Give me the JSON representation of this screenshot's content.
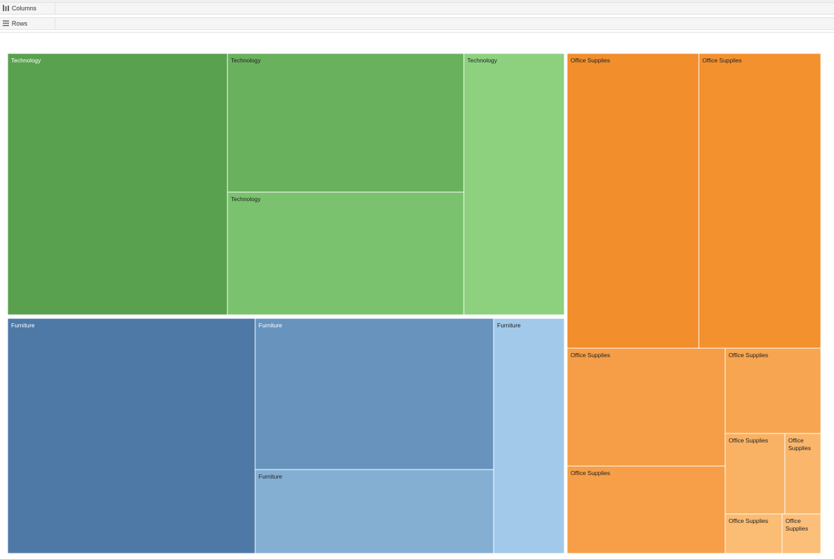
{
  "shelves": {
    "columns_label": "Columns",
    "rows_label": "Rows"
  },
  "chart_data": {
    "type": "treemap",
    "title": "",
    "groups": [
      {
        "name": "Technology",
        "tiles": [
          {
            "label": "Technology",
            "color": "#59a14f",
            "text_color": "#ffffff"
          },
          {
            "label": "Technology",
            "color": "#6ab15e",
            "text_color": "#222222"
          },
          {
            "label": "Technology",
            "color": "#7bc26e",
            "text_color": "#222222"
          },
          {
            "label": "Technology",
            "color": "#8dd17f",
            "text_color": "#222222"
          }
        ]
      },
      {
        "name": "Furniture",
        "tiles": [
          {
            "label": "Furniture",
            "color": "#4e79a7",
            "text_color": "#ffffff"
          },
          {
            "label": "Furniture",
            "color": "#6893bd",
            "text_color": "#ffffff"
          },
          {
            "label": "Furniture",
            "color": "#84afd3",
            "text_color": "#222222"
          },
          {
            "label": "Furniture",
            "color": "#a2c9e9",
            "text_color": "#222222"
          }
        ]
      },
      {
        "name": "Office Supplies",
        "tiles": [
          {
            "label": "Office Supplies",
            "color": "#f28e2b",
            "text_color": "#222222"
          },
          {
            "label": "Office Supplies",
            "color": "#f4912f",
            "text_color": "#222222"
          },
          {
            "label": "Office Supplies",
            "color": "#f59e47",
            "text_color": "#222222"
          },
          {
            "label": "Office Supplies",
            "color": "#f69f48",
            "text_color": "#222222"
          },
          {
            "label": "Office Supplies",
            "color": "#f7a551",
            "text_color": "#222222"
          },
          {
            "label": "Office Supplies",
            "color": "#f9b264",
            "text_color": "#222222"
          },
          {
            "label": "Office Supplies",
            "color": "#fab66b",
            "text_color": "#222222"
          },
          {
            "label": "Office Supplies",
            "color": "#fbbc74",
            "text_color": "#222222"
          },
          {
            "label": "Office Supplies",
            "color": "#fcbf79",
            "text_color": "#222222"
          }
        ]
      }
    ]
  }
}
